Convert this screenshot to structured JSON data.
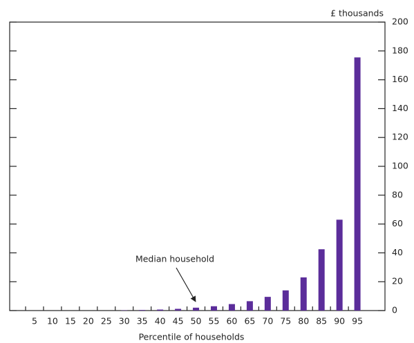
{
  "chart_data": {
    "type": "bar",
    "y_axis_label": "£ thousands",
    "x_axis_label": "Percentile of households",
    "annotation": "Median household",
    "categories": [
      "5",
      "10",
      "15",
      "20",
      "25",
      "30",
      "35",
      "40",
      "45",
      "50",
      "55",
      "60",
      "65",
      "70",
      "75",
      "80",
      "85",
      "90",
      "95"
    ],
    "values": [
      0,
      0,
      0,
      0,
      0,
      0.2,
      0.4,
      0.7,
      1.2,
      2,
      3,
      4.5,
      6.5,
      9.5,
      14,
      23,
      42.5,
      63,
      175.5
    ],
    "color": "#5b2d9a",
    "ylim": [
      0,
      200
    ],
    "yticks": [
      0,
      20,
      40,
      60,
      80,
      100,
      120,
      140,
      160,
      180,
      200
    ]
  }
}
